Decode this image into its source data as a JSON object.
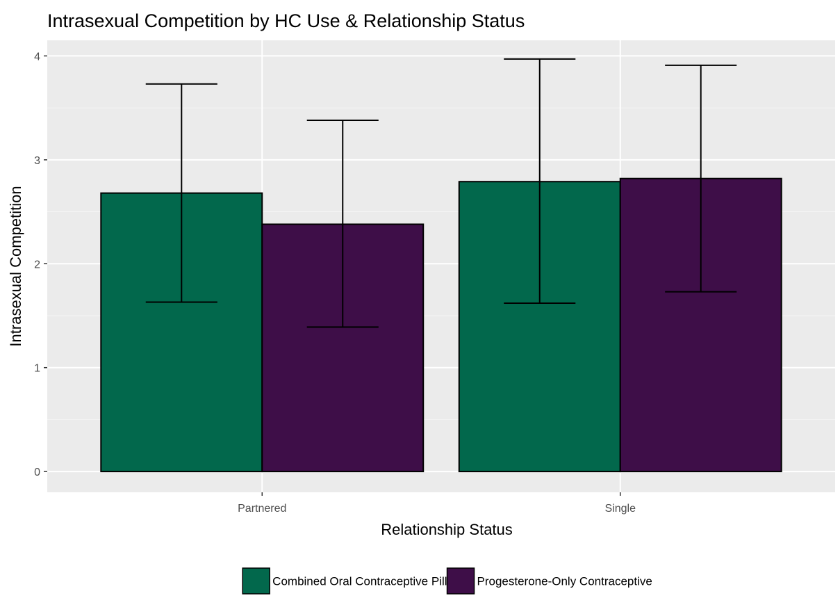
{
  "chart_data": {
    "type": "bar",
    "title": "Intrasexual Competition by HC Use & Relationship Status",
    "xlabel": "Relationship Status",
    "ylabel": "Intrasexual Competition",
    "categories": [
      "Partnered",
      "Single"
    ],
    "ylim": [
      -0.2,
      4.15
    ],
    "yticks": [
      0,
      1,
      2,
      3,
      4
    ],
    "grid": true,
    "legend_position": "bottom",
    "series": [
      {
        "name": "Combined Oral Contraceptive Pill",
        "color": "#02684c",
        "values": [
          2.68,
          2.79
        ],
        "error_lower": [
          1.63,
          1.62
        ],
        "error_upper": [
          3.73,
          3.97
        ]
      },
      {
        "name": "Progesterone-Only Contraceptive",
        "color": "#3e0e48",
        "values": [
          2.38,
          2.82
        ],
        "error_lower": [
          1.39,
          1.73
        ],
        "error_upper": [
          3.38,
          3.91
        ]
      }
    ]
  }
}
